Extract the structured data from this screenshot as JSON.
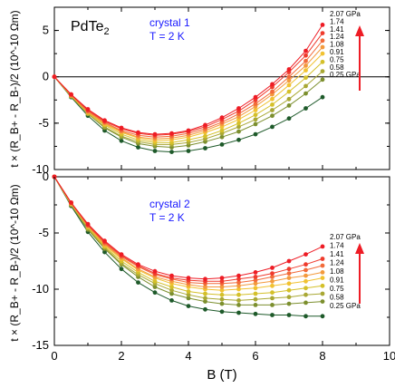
{
  "chart_data": {
    "type": "scatter",
    "material": "PdTe",
    "material_sub": "2",
    "x_label": "B (T)",
    "x_lim": [
      0,
      10
    ],
    "x_ticks": [
      "0",
      "2",
      "4",
      "6",
      "8",
      "10"
    ],
    "pressures": [
      "2.07 GPa",
      "1.74",
      "1.41",
      "1.24",
      "1.08",
      "0.91",
      "0.75",
      "0.58",
      "0.25 GPa"
    ],
    "colors": [
      "#ee1c25",
      "#ef3b2d",
      "#f26b3a",
      "#f39a3d",
      "#f1c232",
      "#d4c02a",
      "#a9a834",
      "#7c8f2e",
      "#1e5a2a"
    ],
    "panels": [
      {
        "name": "crystal 1",
        "temp": "T = 2 K",
        "ylabel": "t × (R_B+ - R_B-)/2 (10^-10 Ωm)",
        "ylim": [
          -10,
          7.5
        ],
        "yticks": [
          "5",
          "0",
          "-5",
          "-10"
        ],
        "zero_line": true,
        "series": [
          {
            "name": "2.07 GPa",
            "x": [
              0,
              0.5,
              1,
              1.5,
              2,
              2.5,
              3,
              3.5,
              4,
              4.5,
              5,
              5.5,
              6,
              6.5,
              7,
              7.5,
              8
            ],
            "y": [
              0,
              -1.9,
              -3.5,
              -4.7,
              -5.5,
              -6.0,
              -6.2,
              -6.1,
              -5.8,
              -5.2,
              -4.4,
              -3.4,
              -2.2,
              -0.8,
              0.8,
              2.8,
              5.6
            ]
          },
          {
            "name": "1.74",
            "x": [
              0,
              0.5,
              1,
              1.5,
              2,
              2.5,
              3,
              3.5,
              4,
              4.5,
              5,
              5.5,
              6,
              6.5,
              7,
              7.5,
              8
            ],
            "y": [
              0,
              -1.9,
              -3.6,
              -4.8,
              -5.6,
              -6.1,
              -6.3,
              -6.2,
              -5.9,
              -5.4,
              -4.6,
              -3.7,
              -2.5,
              -1.1,
              0.5,
              2.3,
              4.7
            ]
          },
          {
            "name": "1.41",
            "x": [
              0,
              0.5,
              1,
              1.5,
              2,
              2.5,
              3,
              3.5,
              4,
              4.5,
              5,
              5.5,
              6,
              6.5,
              7,
              7.5,
              8
            ],
            "y": [
              0,
              -2.0,
              -3.7,
              -4.9,
              -5.8,
              -6.3,
              -6.5,
              -6.4,
              -6.1,
              -5.6,
              -4.9,
              -4.0,
              -2.9,
              -1.6,
              0.0,
              1.7,
              3.9
            ]
          },
          {
            "name": "1.24",
            "x": [
              0,
              0.5,
              1,
              1.5,
              2,
              2.5,
              3,
              3.5,
              4,
              4.5,
              5,
              5.5,
              6,
              6.5,
              7,
              7.5,
              8
            ],
            "y": [
              0,
              -2.0,
              -3.8,
              -5.0,
              -5.9,
              -6.5,
              -6.7,
              -6.6,
              -6.3,
              -5.8,
              -5.1,
              -4.3,
              -3.2,
              -1.9,
              -0.4,
              1.2,
              3.2
            ]
          },
          {
            "name": "1.08",
            "x": [
              0,
              0.5,
              1,
              1.5,
              2,
              2.5,
              3,
              3.5,
              4,
              4.5,
              5,
              5.5,
              6,
              6.5,
              7,
              7.5,
              8
            ],
            "y": [
              0,
              -2.0,
              -3.8,
              -5.1,
              -6.0,
              -6.6,
              -6.9,
              -6.8,
              -6.5,
              -6.0,
              -5.4,
              -4.6,
              -3.6,
              -2.4,
              -0.9,
              0.7,
              2.5
            ]
          },
          {
            "name": "0.91",
            "x": [
              0,
              0.5,
              1,
              1.5,
              2,
              2.5,
              3,
              3.5,
              4,
              4.5,
              5,
              5.5,
              6,
              6.5,
              7,
              7.5,
              8
            ],
            "y": [
              0,
              -2.1,
              -3.9,
              -5.2,
              -6.2,
              -6.8,
              -7.1,
              -7.1,
              -6.8,
              -6.4,
              -5.8,
              -5.0,
              -4.1,
              -3.0,
              -1.6,
              -0.1,
              1.6
            ]
          },
          {
            "name": "0.75",
            "x": [
              0,
              0.5,
              1,
              1.5,
              2,
              2.5,
              3,
              3.5,
              4,
              4.5,
              5,
              5.5,
              6,
              6.5,
              7,
              7.5,
              8
            ],
            "y": [
              0,
              -2.1,
              -4.0,
              -5.4,
              -6.4,
              -7.0,
              -7.3,
              -7.3,
              -7.1,
              -6.7,
              -6.1,
              -5.4,
              -4.6,
              -3.6,
              -2.4,
              -1.0,
              0.6
            ]
          },
          {
            "name": "0.58",
            "x": [
              0,
              0.5,
              1,
              1.5,
              2,
              2.5,
              3,
              3.5,
              4,
              4.5,
              5,
              5.5,
              6,
              6.5,
              7,
              7.5,
              8
            ],
            "y": [
              0,
              -2.1,
              -4.0,
              -5.5,
              -6.5,
              -7.2,
              -7.5,
              -7.6,
              -7.4,
              -7.0,
              -6.5,
              -5.9,
              -5.1,
              -4.2,
              -3.1,
              -1.8,
              -0.3
            ]
          },
          {
            "name": "0.25 GPa",
            "x": [
              0,
              0.5,
              1,
              1.5,
              2,
              2.5,
              3,
              3.5,
              4,
              4.5,
              5,
              5.5,
              6,
              6.5,
              7,
              7.5,
              8
            ],
            "y": [
              0,
              -2.2,
              -4.2,
              -5.8,
              -6.9,
              -7.6,
              -8.0,
              -8.1,
              -8.0,
              -7.7,
              -7.3,
              -6.8,
              -6.2,
              -5.4,
              -4.5,
              -3.4,
              -2.2
            ]
          }
        ]
      },
      {
        "name": "crystal 2",
        "temp": "T = 2 K",
        "ylabel": "t × (R_B+ - R_B-)/2 (10^-10 Ωm)",
        "ylim": [
          -15,
          0
        ],
        "yticks": [
          "0",
          "-5",
          "-10",
          "-15"
        ],
        "zero_line": false,
        "series": [
          {
            "name": "2.07 GPa",
            "x": [
              0,
              0.5,
              1,
              1.5,
              2,
              2.5,
              3,
              3.5,
              4,
              4.5,
              5,
              5.5,
              6,
              6.5,
              7,
              7.5,
              8
            ],
            "y": [
              0,
              -2.3,
              -4.2,
              -5.7,
              -6.9,
              -7.8,
              -8.4,
              -8.8,
              -9.0,
              -9.1,
              -9.0,
              -8.8,
              -8.5,
              -8.1,
              -7.5,
              -6.9,
              -6.2
            ]
          },
          {
            "name": "1.74",
            "x": [
              0,
              0.5,
              1,
              1.5,
              2,
              2.5,
              3,
              3.5,
              4,
              4.5,
              5,
              5.5,
              6,
              6.5,
              7,
              7.5,
              8
            ],
            "y": [
              0,
              -2.3,
              -4.3,
              -5.8,
              -7.0,
              -7.9,
              -8.6,
              -9.0,
              -9.2,
              -9.3,
              -9.3,
              -9.1,
              -8.9,
              -8.6,
              -8.2,
              -7.8,
              -7.3
            ]
          },
          {
            "name": "1.41",
            "x": [
              0,
              0.5,
              1,
              1.5,
              2,
              2.5,
              3,
              3.5,
              4,
              4.5,
              5,
              5.5,
              6,
              6.5,
              7,
              7.5,
              8
            ],
            "y": [
              0,
              -2.3,
              -4.3,
              -5.9,
              -7.1,
              -8.0,
              -8.7,
              -9.1,
              -9.4,
              -9.5,
              -9.5,
              -9.4,
              -9.2,
              -8.9,
              -8.6,
              -8.3,
              -7.9
            ]
          },
          {
            "name": "1.24",
            "x": [
              0,
              0.5,
              1,
              1.5,
              2,
              2.5,
              3,
              3.5,
              4,
              4.5,
              5,
              5.5,
              6,
              6.5,
              7,
              7.5,
              8
            ],
            "y": [
              0,
              -2.4,
              -4.4,
              -6.0,
              -7.2,
              -8.2,
              -8.9,
              -9.3,
              -9.6,
              -9.8,
              -9.8,
              -9.7,
              -9.5,
              -9.3,
              -9.0,
              -8.8,
              -8.5
            ]
          },
          {
            "name": "1.08",
            "x": [
              0,
              0.5,
              1,
              1.5,
              2,
              2.5,
              3,
              3.5,
              4,
              4.5,
              5,
              5.5,
              6,
              6.5,
              7,
              7.5,
              8
            ],
            "y": [
              0,
              -2.4,
              -4.4,
              -6.1,
              -7.3,
              -8.3,
              -9.0,
              -9.5,
              -9.8,
              -10.0,
              -10.1,
              -10.0,
              -9.9,
              -9.7,
              -9.5,
              -9.3,
              -9.0
            ]
          },
          {
            "name": "0.91",
            "x": [
              0,
              0.5,
              1,
              1.5,
              2,
              2.5,
              3,
              3.5,
              4,
              4.5,
              5,
              5.5,
              6,
              6.5,
              7,
              7.5,
              8
            ],
            "y": [
              0,
              -2.4,
              -4.5,
              -6.2,
              -7.5,
              -8.5,
              -9.3,
              -9.8,
              -10.2,
              -10.4,
              -10.5,
              -10.5,
              -10.4,
              -10.3,
              -10.1,
              -9.9,
              -9.7
            ]
          },
          {
            "name": "0.75",
            "x": [
              0,
              0.5,
              1,
              1.5,
              2,
              2.5,
              3,
              3.5,
              4,
              4.5,
              5,
              5.5,
              6,
              6.5,
              7,
              7.5,
              8
            ],
            "y": [
              0,
              -2.5,
              -4.6,
              -6.3,
              -7.7,
              -8.7,
              -9.5,
              -10.1,
              -10.5,
              -10.8,
              -10.9,
              -11.0,
              -10.9,
              -10.8,
              -10.7,
              -10.5,
              -10.4
            ]
          },
          {
            "name": "0.58",
            "x": [
              0,
              0.5,
              1,
              1.5,
              2,
              2.5,
              3,
              3.5,
              4,
              4.5,
              5,
              5.5,
              6,
              6.5,
              7,
              7.5,
              8
            ],
            "y": [
              0,
              -2.5,
              -4.7,
              -6.4,
              -7.8,
              -8.9,
              -9.8,
              -10.4,
              -10.8,
              -11.1,
              -11.3,
              -11.4,
              -11.4,
              -11.4,
              -11.3,
              -11.2,
              -11.1
            ]
          },
          {
            "name": "0.25 GPa",
            "x": [
              0,
              0.5,
              1,
              1.5,
              2,
              2.5,
              3,
              3.5,
              4,
              4.5,
              5,
              5.5,
              6,
              6.5,
              7,
              7.5,
              8
            ],
            "y": [
              0,
              -2.6,
              -4.9,
              -6.7,
              -8.2,
              -9.4,
              -10.3,
              -11.0,
              -11.5,
              -11.8,
              -12.0,
              -12.1,
              -12.2,
              -12.3,
              -12.3,
              -12.4,
              -12.4
            ]
          }
        ]
      }
    ]
  }
}
